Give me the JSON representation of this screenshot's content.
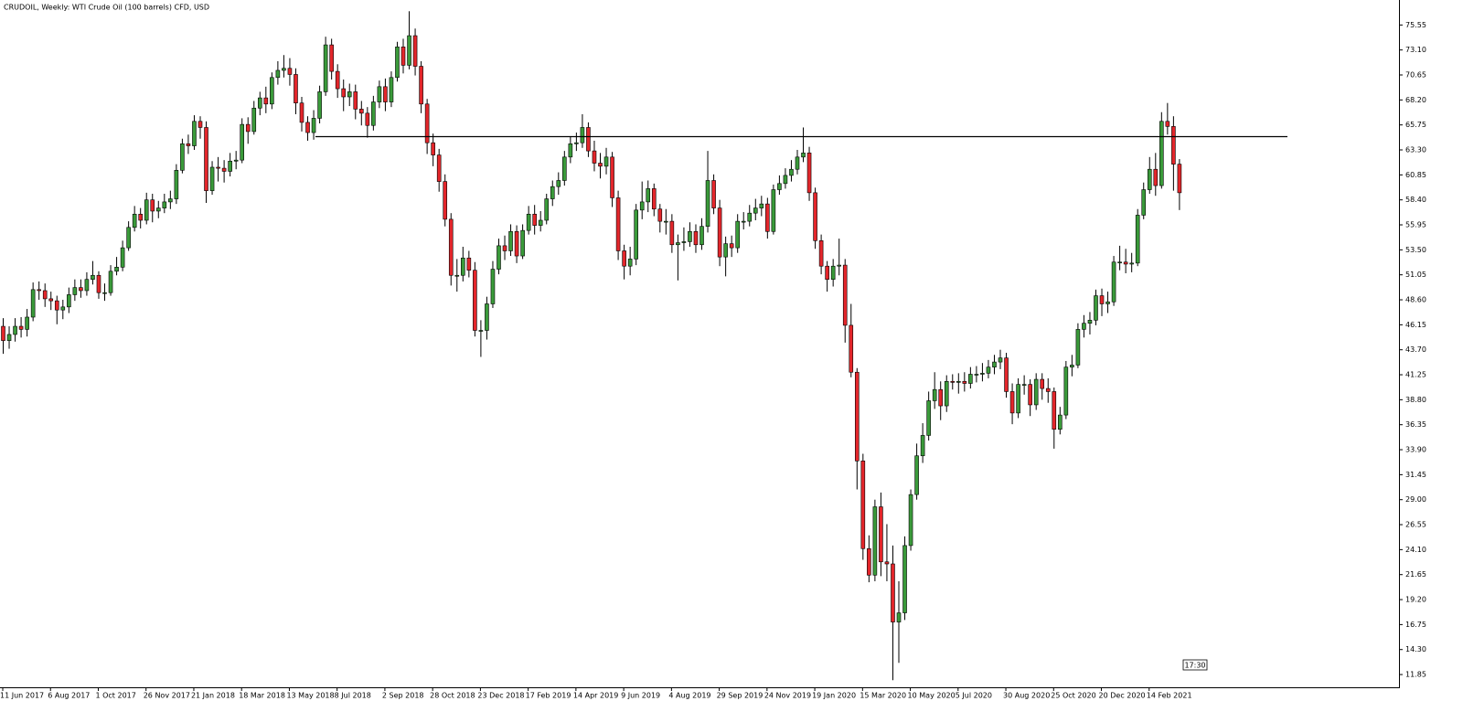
{
  "chart_data": {
    "type": "candlestick",
    "title": "CRUDOIL, Weekly:  WTI Crude Oil (100 barrels) CFD, USD",
    "time_label": "17:30",
    "up_color": "#3a9a3a",
    "down_color": "#e3262b",
    "level": 64.6,
    "ylim": [
      10.6,
      78.0
    ],
    "yticks": [
      75.55,
      {
        "value": 73.1,
        "label": "73.10"
      },
      70.65,
      {
        "value": 68.2,
        "label": "68.20"
      },
      65.75,
      {
        "value": 63.3,
        "label": "63.30"
      },
      60.85,
      {
        "value": 58.4,
        "label": "58.40"
      },
      55.95,
      {
        "value": 53.5,
        "label": "53.50"
      },
      51.05,
      {
        "value": 48.6,
        "label": "48.60"
      },
      46.15,
      {
        "value": 43.7,
        "label": "43.70"
      },
      41.25,
      {
        "value": 38.8,
        "label": "38.80"
      },
      36.35,
      {
        "value": 33.9,
        "label": "33.90"
      },
      31.45,
      {
        "value": 29.0,
        "label": "29.00"
      },
      26.55,
      {
        "value": 24.1,
        "label": "24.10"
      },
      21.65,
      {
        "value": 19.2,
        "label": "19.20"
      },
      16.75,
      {
        "value": 14.3,
        "label": "14.30"
      },
      11.85
    ],
    "categories": [
      "11 Jun 2017",
      null,
      null,
      null,
      null,
      null,
      null,
      null,
      "6 Aug 2017",
      null,
      null,
      null,
      null,
      null,
      null,
      null,
      "1 Oct 2017",
      null,
      null,
      null,
      null,
      null,
      null,
      null,
      "26 Nov 2017",
      null,
      null,
      null,
      null,
      null,
      null,
      null,
      "21 Jan 2018",
      null,
      null,
      null,
      null,
      null,
      null,
      null,
      "18 Mar 2018",
      null,
      null,
      null,
      null,
      null,
      null,
      null,
      "13 May 2018",
      null,
      null,
      null,
      null,
      null,
      null,
      null,
      "8 Jul 2018",
      null,
      null,
      null,
      null,
      null,
      null,
      null,
      "2 Sep 2018",
      null,
      null,
      null,
      null,
      null,
      null,
      null,
      "28 Oct 2018",
      null,
      null,
      null,
      null,
      null,
      null,
      null,
      "23 Dec 2018",
      null,
      null,
      null,
      null,
      null,
      null,
      null,
      "17 Feb 2019",
      null,
      null,
      null,
      null,
      null,
      null,
      null,
      "14 Apr 2019",
      null,
      null,
      null,
      null,
      null,
      null,
      null,
      "9 Jun 2019",
      null,
      null,
      null,
      null,
      null,
      null,
      null,
      "4 Aug 2019",
      null,
      null,
      null,
      null,
      null,
      null,
      null,
      "29 Sep 2019",
      null,
      null,
      null,
      null,
      null,
      null,
      null,
      "24 Nov 2019",
      null,
      null,
      null,
      null,
      null,
      null,
      null,
      "19 Jan 2020",
      null,
      null,
      null,
      null,
      null,
      null,
      null,
      "15 Mar 2020",
      null,
      null,
      null,
      null,
      null,
      null,
      null,
      "10 May 2020",
      null,
      null,
      null,
      null,
      null,
      null,
      null,
      "5 Jul 2020",
      null,
      null,
      null,
      null,
      null,
      null,
      null,
      "30 Aug 2020",
      null,
      null,
      null,
      null,
      null,
      null,
      null,
      "25 Oct 2020",
      null,
      null,
      null,
      null,
      null,
      null,
      null,
      "20 Dec 2020",
      null,
      null,
      null,
      null,
      null,
      null,
      null,
      "14 Feb 2021",
      null,
      null,
      null,
      null,
      null
    ],
    "open": [
      46.0,
      44.6,
      45.2,
      46.0,
      45.7,
      46.9,
      49.6,
      49.5,
      48.7,
      48.5,
      47.6,
      47.9,
      49.1,
      49.8,
      49.5,
      50.6,
      51.0,
      49.3,
      49.3,
      51.4,
      51.8,
      53.7,
      55.7,
      57.0,
      56.4,
      58.4,
      57.3,
      57.6,
      58.2,
      58.5,
      61.3,
      63.9,
      63.7,
      66.1,
      65.5,
      59.3,
      61.6,
      61.5,
      61.2,
      62.2,
      62.3,
      65.8,
      65.1,
      67.4,
      68.4,
      67.8,
      70.4,
      71.1,
      71.3,
      70.7,
      67.9,
      66.0,
      65.0,
      66.4,
      69.0,
      73.6,
      71.0,
      69.3,
      68.5,
      69.0,
      67.3,
      66.9,
      65.7,
      68.0,
      69.5,
      68.0,
      70.4,
      73.4,
      71.6,
      74.5,
      71.5,
      67.8,
      64.0,
      62.8,
      60.2,
      56.5,
      51.0,
      51.0,
      52.7,
      51.5,
      45.6,
      45.6,
      48.2,
      51.6,
      53.9,
      53.4,
      55.3,
      52.9,
      55.4,
      57.0,
      55.9,
      56.4,
      58.5,
      59.7,
      60.3,
      62.6,
      63.9,
      64.0,
      65.5,
      63.2,
      62.0,
      61.7,
      62.6,
      58.6,
      53.4,
      51.9,
      52.6,
      57.4,
      58.2,
      59.5,
      57.5,
      56.3,
      56.3,
      54.0,
      54.2,
      54.3,
      55.3,
      54.0,
      55.8,
      60.3,
      57.6,
      52.8,
      54.1,
      53.7,
      56.3,
      56.3,
      57.1,
      57.6,
      58.0,
      55.3,
      59.4,
      60.0,
      60.8,
      61.4,
      62.6,
      63.0,
      59.1,
      54.4,
      51.9,
      50.6,
      51.9,
      52.0,
      46.1,
      41.5,
      32.8,
      24.2,
      21.6,
      28.3,
      22.9,
      22.7,
      17.0,
      17.9,
      24.5,
      29.5,
      33.3,
      35.3,
      38.7,
      39.8,
      38.2,
      40.6,
      40.5,
      40.6,
      40.4,
      41.3,
      41.3,
      41.4,
      42.0,
      42.5,
      42.9,
      39.6,
      37.5,
      40.3,
      40.3,
      38.3,
      40.8,
      39.9,
      39.6,
      35.9,
      37.3,
      42.0,
      42.2,
      45.7,
      46.3,
      46.6,
      49.0,
      48.2,
      48.4,
      52.3,
      52.3,
      52.1,
      52.2,
      56.9,
      59.4,
      61.4,
      59.8,
      66.1,
      65.6,
      61.9
    ],
    "high": [
      46.8,
      46.0,
      46.8,
      46.9,
      47.7,
      50.3,
      50.4,
      50.2,
      49.4,
      49.0,
      48.6,
      49.8,
      50.6,
      50.6,
      51.3,
      52.4,
      51.4,
      50.2,
      52.0,
      52.8,
      54.4,
      56.3,
      57.8,
      57.6,
      59.1,
      59.0,
      58.3,
      59.0,
      59.3,
      61.9,
      64.4,
      64.8,
      66.7,
      66.6,
      66.1,
      62.2,
      62.6,
      62.3,
      63.0,
      63.2,
      66.4,
      66.5,
      68.1,
      69.0,
      69.5,
      70.9,
      72.0,
      72.6,
      72.3,
      71.3,
      68.5,
      66.6,
      67.2,
      69.6,
      74.4,
      74.2,
      71.7,
      70.2,
      69.8,
      69.7,
      68.1,
      67.5,
      68.6,
      70.1,
      70.3,
      71.0,
      73.9,
      74.2,
      76.9,
      75.2,
      72.0,
      68.3,
      64.9,
      63.4,
      60.9,
      57.1,
      52.6,
      53.8,
      53.4,
      52.3,
      46.6,
      48.9,
      52.4,
      54.6,
      54.9,
      56.0,
      55.9,
      56.0,
      57.8,
      57.9,
      57.3,
      59.0,
      60.3,
      61.1,
      63.2,
      64.6,
      65.0,
      66.8,
      66.0,
      64.2,
      63.0,
      63.5,
      63.1,
      59.3,
      54.0,
      53.8,
      58.0,
      60.2,
      60.3,
      60.0,
      58.0,
      57.5,
      57.0,
      55.0,
      55.7,
      56.2,
      56.0,
      56.6,
      63.2,
      60.9,
      58.4,
      54.8,
      54.9,
      57.0,
      57.2,
      57.9,
      58.5,
      58.8,
      58.6,
      59.9,
      60.8,
      61.5,
      62.3,
      63.3,
      65.5,
      63.6,
      59.6,
      55.0,
      52.4,
      52.6,
      54.6,
      52.6,
      48.2,
      41.9,
      33.5,
      25.5,
      29.0,
      29.7,
      26.6,
      24.5,
      21.0,
      25.4,
      30.0,
      34.5,
      36.5,
      39.6,
      41.5,
      40.6,
      41.2,
      41.3,
      41.4,
      41.5,
      42.0,
      42.1,
      42.4,
      42.7,
      43.2,
      43.7,
      43.4,
      40.4,
      40.9,
      41.2,
      40.8,
      41.4,
      41.4,
      40.9,
      40.0,
      38.1,
      42.6,
      43.2,
      46.3,
      47.1,
      47.4,
      49.6,
      49.7,
      49.4,
      52.9,
      53.9,
      53.6,
      53.2,
      57.5,
      60.1,
      62.6,
      63.0,
      67.0,
      67.9,
      66.6,
      62.4
    ],
    "low": [
      43.3,
      43.8,
      44.5,
      44.9,
      45.0,
      46.5,
      48.6,
      47.9,
      47.6,
      46.2,
      46.7,
      47.3,
      48.5,
      48.8,
      49.0,
      50.1,
      48.7,
      48.5,
      49.0,
      51.0,
      51.4,
      53.4,
      55.3,
      55.6,
      56.0,
      56.2,
      56.6,
      57.1,
      57.5,
      58.0,
      61.0,
      62.9,
      63.3,
      64.4,
      58.1,
      58.9,
      60.2,
      60.1,
      60.7,
      61.4,
      62.0,
      63.9,
      64.8,
      66.7,
      66.9,
      67.3,
      69.7,
      70.4,
      69.6,
      66.8,
      65.1,
      64.2,
      64.3,
      65.9,
      68.6,
      70.2,
      68.4,
      67.1,
      67.6,
      66.3,
      65.7,
      64.5,
      65.2,
      67.4,
      67.1,
      67.5,
      70.0,
      70.8,
      71.2,
      70.6,
      66.9,
      62.9,
      61.7,
      59.2,
      55.8,
      50.0,
      49.4,
      50.4,
      50.8,
      45.0,
      43.0,
      44.7,
      47.8,
      51.1,
      52.5,
      52.9,
      52.2,
      52.6,
      55.0,
      55.0,
      55.3,
      56.0,
      57.8,
      58.9,
      59.8,
      62.0,
      63.2,
      63.5,
      62.6,
      61.2,
      60.5,
      60.9,
      57.7,
      52.5,
      50.6,
      51.0,
      52.0,
      56.5,
      57.2,
      56.8,
      55.2,
      55.0,
      53.2,
      50.5,
      53.4,
      53.8,
      53.2,
      53.5,
      55.2,
      57.0,
      51.9,
      50.9,
      52.8,
      53.2,
      55.5,
      55.8,
      56.4,
      56.8,
      54.6,
      55.0,
      58.9,
      59.5,
      60.2,
      60.9,
      62.1,
      58.3,
      53.6,
      51.1,
      49.4,
      49.9,
      51.0,
      44.4,
      41.0,
      30.0,
      23.1,
      20.9,
      21.0,
      21.5,
      21.0,
      11.3,
      13.0,
      17.2,
      24.0,
      29.0,
      32.6,
      34.8,
      37.9,
      36.8,
      37.6,
      39.8,
      39.4,
      39.6,
      39.9,
      40.5,
      40.6,
      40.9,
      41.3,
      41.8,
      39.0,
      36.4,
      37.0,
      39.3,
      37.2,
      37.8,
      38.8,
      38.5,
      34.0,
      35.4,
      36.9,
      41.1,
      41.9,
      44.9,
      45.2,
      46.1,
      47.0,
      47.3,
      48.0,
      51.5,
      51.2,
      51.3,
      51.9,
      56.5,
      59.0,
      58.8,
      59.5,
      64.8,
      59.3,
      57.4
    ],
    "close": [
      44.6,
      45.2,
      46.0,
      45.7,
      46.9,
      49.6,
      49.5,
      48.7,
      48.5,
      47.6,
      47.9,
      49.1,
      49.8,
      49.5,
      50.6,
      51.0,
      49.3,
      49.3,
      51.4,
      51.8,
      53.7,
      55.7,
      57.0,
      56.4,
      58.4,
      57.3,
      57.6,
      58.2,
      58.5,
      61.3,
      63.9,
      63.7,
      66.1,
      65.5,
      59.3,
      61.6,
      61.5,
      61.2,
      62.2,
      62.3,
      65.8,
      65.1,
      67.4,
      68.4,
      67.8,
      70.4,
      71.1,
      71.3,
      70.7,
      67.9,
      66.0,
      65.0,
      66.4,
      69.0,
      73.6,
      71.0,
      69.3,
      68.5,
      69.0,
      67.3,
      66.9,
      65.7,
      68.0,
      69.5,
      68.0,
      70.4,
      73.4,
      71.6,
      74.5,
      71.5,
      67.8,
      64.0,
      62.8,
      60.2,
      56.5,
      51.0,
      51.0,
      52.7,
      51.5,
      45.6,
      45.6,
      48.2,
      51.6,
      53.9,
      53.4,
      55.3,
      52.9,
      55.4,
      57.0,
      55.9,
      56.4,
      58.5,
      59.7,
      60.3,
      62.6,
      63.9,
      64.0,
      65.5,
      63.2,
      62.0,
      61.7,
      62.6,
      58.6,
      53.4,
      51.9,
      52.6,
      57.4,
      58.2,
      59.5,
      57.5,
      56.3,
      56.3,
      54.0,
      54.2,
      54.3,
      55.3,
      54.0,
      55.8,
      60.3,
      57.6,
      52.8,
      54.1,
      53.7,
      56.3,
      56.3,
      57.1,
      57.6,
      58.0,
      55.3,
      59.4,
      60.0,
      60.8,
      61.4,
      62.6,
      63.0,
      59.1,
      54.4,
      51.9,
      50.6,
      51.9,
      52.0,
      46.1,
      41.5,
      32.8,
      24.2,
      21.6,
      28.3,
      22.9,
      22.7,
      17.0,
      17.9,
      24.5,
      29.5,
      33.3,
      35.3,
      38.7,
      39.8,
      38.2,
      40.6,
      40.5,
      40.6,
      40.4,
      41.3,
      41.3,
      41.4,
      42.0,
      42.5,
      42.9,
      39.6,
      37.5,
      40.3,
      40.3,
      38.3,
      40.8,
      39.9,
      39.6,
      35.9,
      37.3,
      42.0,
      42.2,
      45.7,
      46.3,
      46.6,
      49.0,
      48.2,
      48.4,
      52.3,
      52.3,
      52.1,
      52.2,
      56.9,
      59.4,
      61.4,
      59.8,
      66.1,
      65.6,
      61.9,
      59.1
    ]
  }
}
